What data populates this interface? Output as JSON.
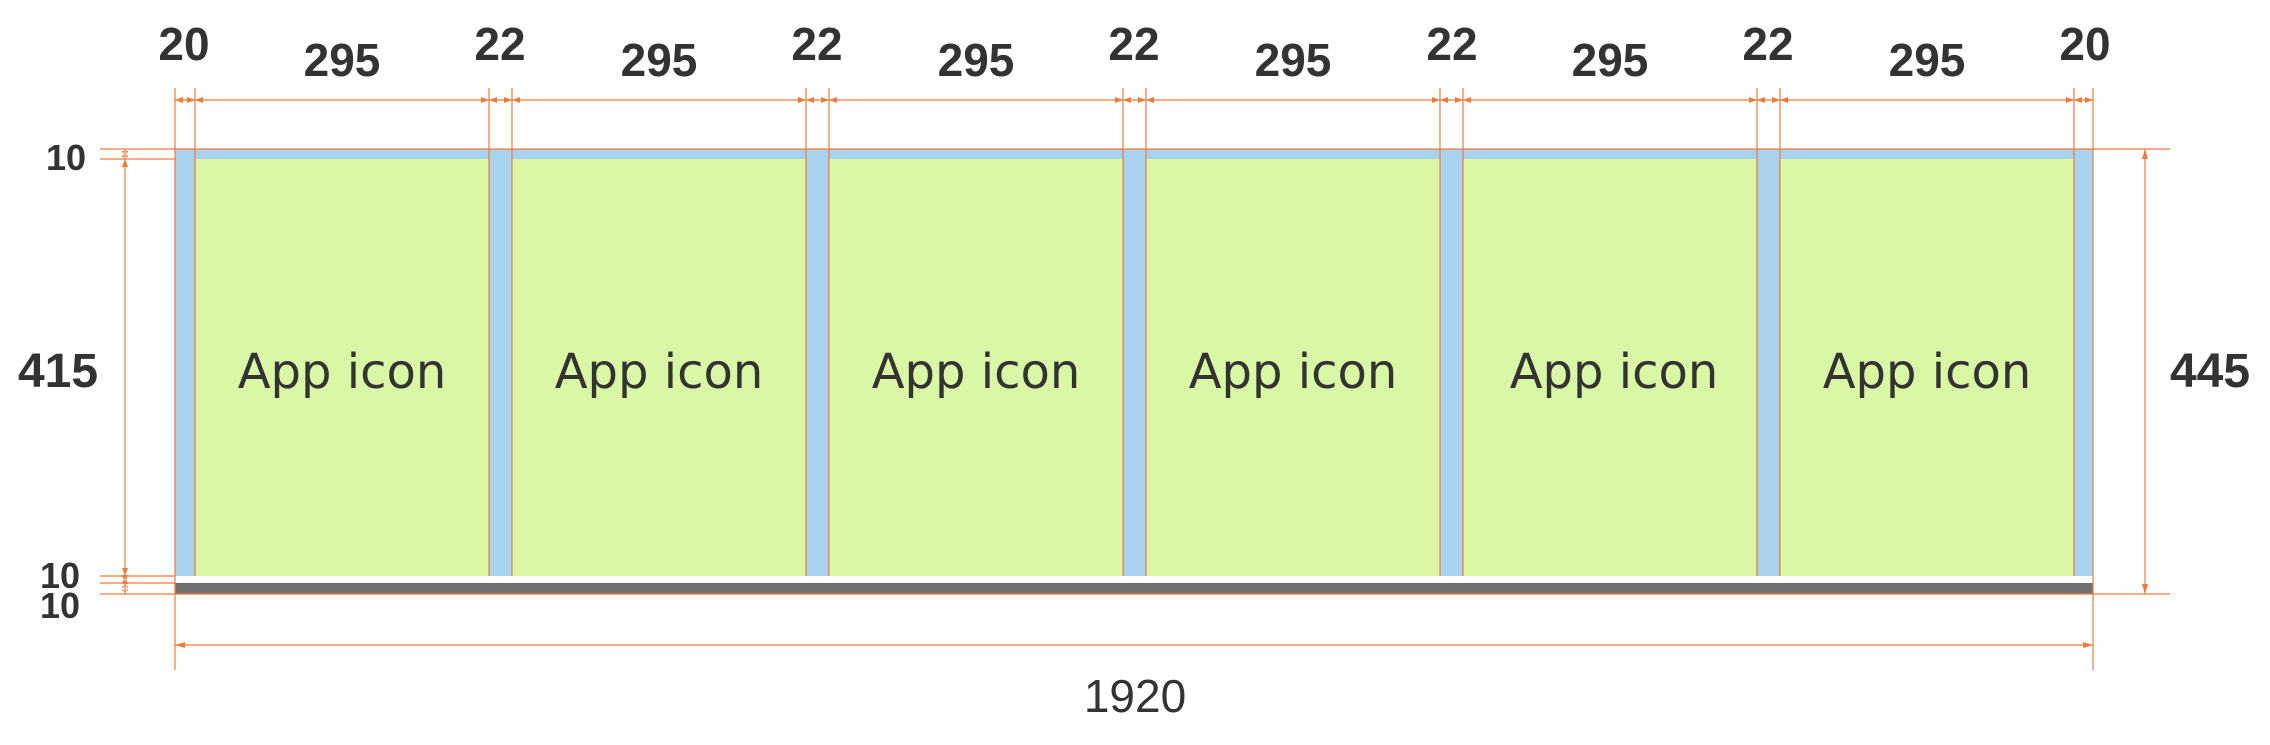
{
  "colors": {
    "guide": "#f07a3a",
    "frame": "#a9d2ee",
    "cell": "#d9f7a5",
    "bar": "#707070",
    "text": "#333333"
  },
  "cells": [
    {
      "label": "App icon"
    },
    {
      "label": "App icon"
    },
    {
      "label": "App icon"
    },
    {
      "label": "App icon"
    },
    {
      "label": "App icon"
    },
    {
      "label": "App icon"
    }
  ],
  "top_dimensions": {
    "outer_left": "20",
    "cell_width": "295",
    "gutter": "22",
    "outer_right": "20"
  },
  "left_dimensions": {
    "top_padding": "10",
    "cell_height": "415",
    "bottom_padding": "10",
    "bar": "10"
  },
  "right_dimension": "445",
  "total_width": "1920"
}
